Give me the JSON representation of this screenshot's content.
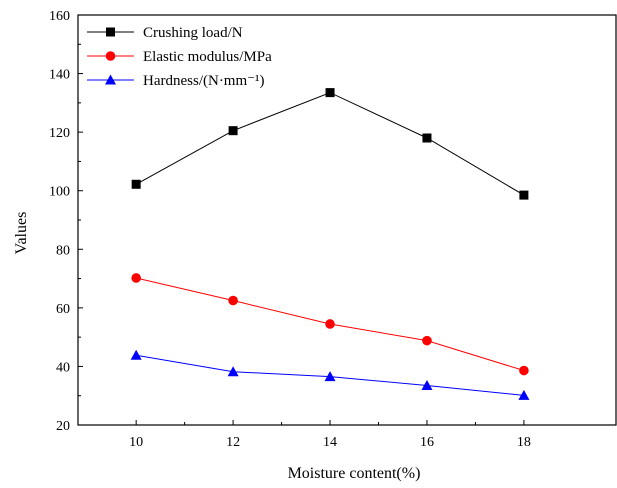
{
  "chart_data": {
    "type": "line",
    "xlabel": "Moisture content(%)",
    "ylabel": "Values",
    "x": [
      10,
      12,
      14,
      16,
      18
    ],
    "xticks": [
      10,
      12,
      14,
      16,
      18
    ],
    "yticks": [
      20,
      40,
      60,
      80,
      100,
      120,
      140,
      160
    ],
    "xlim": [
      8.8,
      19.9
    ],
    "ylim": [
      20,
      160
    ],
    "grid": false,
    "legend_position": "top-left",
    "series": [
      {
        "name": "Crushing load/N",
        "values": [
          102.2,
          120.5,
          133.5,
          118.0,
          98.5
        ],
        "color": "#000000",
        "marker": "square"
      },
      {
        "name": "Elastic modulus/MPa",
        "values": [
          70.2,
          62.5,
          54.5,
          48.8,
          38.6
        ],
        "color": "#ff0000",
        "marker": "circle"
      },
      {
        "name": "Hardness/(N·mm⁻¹)",
        "values": [
          43.8,
          38.2,
          36.5,
          33.5,
          30.1
        ],
        "color": "#0000ff",
        "marker": "triangle"
      }
    ]
  }
}
